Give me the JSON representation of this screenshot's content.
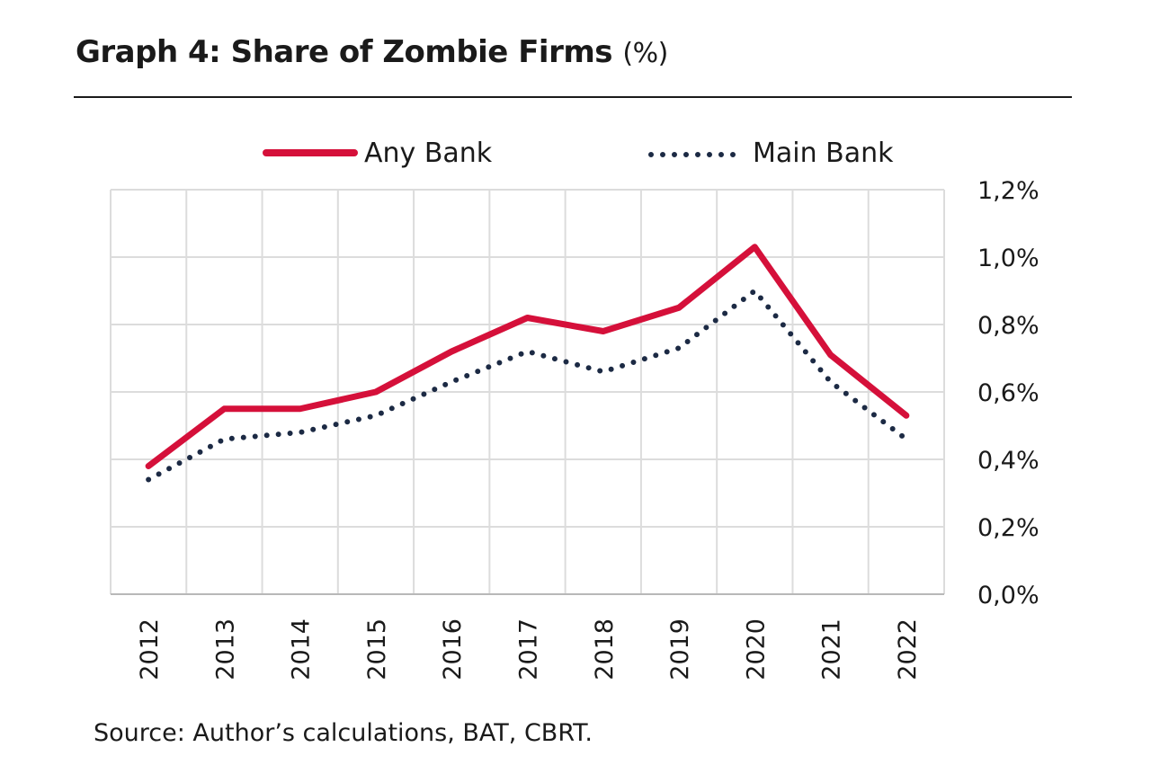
{
  "header": {
    "title": "Graph 4: Share of Zombie Firms",
    "unit": "(%)"
  },
  "source": "Source: Author’s calculations, BAT, CBRT.",
  "chart_data": {
    "type": "line",
    "title": "Graph 4: Share of Zombie Firms (%)",
    "x": [
      "2012",
      "2013",
      "2014",
      "2015",
      "2016",
      "2017",
      "2018",
      "2019",
      "2020",
      "2021",
      "2022"
    ],
    "series": [
      {
        "name": "Any Bank",
        "style": "solid",
        "color": "#d5103a",
        "values": [
          0.38,
          0.55,
          0.55,
          0.6,
          0.72,
          0.82,
          0.78,
          0.85,
          1.03,
          0.71,
          0.53
        ]
      },
      {
        "name": "Main Bank",
        "style": "dotted",
        "color": "#1c2a44",
        "values": [
          0.34,
          0.46,
          0.48,
          0.53,
          0.63,
          0.72,
          0.66,
          0.73,
          0.9,
          0.63,
          0.46
        ]
      }
    ],
    "yticks": [
      "0,0%",
      "0,2%",
      "0,4%",
      "0,6%",
      "0,8%",
      "1,0%",
      "1,2%"
    ],
    "ylim": [
      0,
      1.2
    ],
    "y_axis_side": "right",
    "grid": true,
    "legend": "top"
  }
}
